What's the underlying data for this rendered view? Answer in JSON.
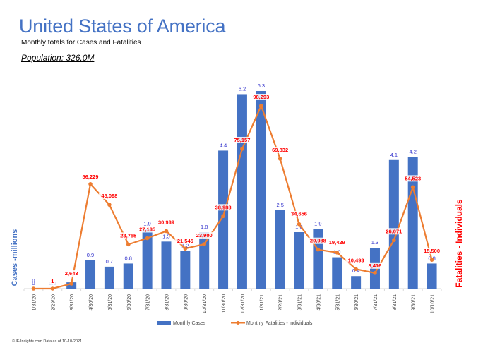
{
  "header": {
    "title": "United States of America",
    "subtitle": "Monthly totals for Cases and Fatalities",
    "population": "Population: 326.0M"
  },
  "footer": "©JF-Insights.com  Data as of 10-10-2021",
  "colors": {
    "cases": "#4472c4",
    "fatalities": "#ed7d31",
    "cases_label": "#3333cc",
    "fatalities_label": "#ff0000"
  },
  "chart_data": {
    "type": "bar",
    "title": "United States of America",
    "subtitle": "Monthly totals for Cases and Fatalities",
    "categories": [
      "1/31/20",
      "2/29/20",
      "3/31/20",
      "4/30/20",
      "5/31/20",
      "6/30/20",
      "7/31/20",
      "8/31/20",
      "9/30/20",
      "10/31/20",
      "11/30/20",
      "12/31/20",
      "1/31/21",
      "2/28/21",
      "3/31/21",
      "4/30/21",
      "5/31/21",
      "6/30/21",
      "7/31/21",
      "8/31/21",
      "9/30/21",
      "10/10/21"
    ],
    "series": [
      {
        "name": "Monthly Cases",
        "type": "bar",
        "axis": "left",
        "values": [
          0,
          0.0,
          0.2,
          0.9,
          0.7,
          0.8,
          1.9,
          1.5,
          1.2,
          1.8,
          4.4,
          6.2,
          6.3,
          2.5,
          1.8,
          1.9,
          1.0,
          0.4,
          1.3,
          4.1,
          4.2,
          0.8
        ],
        "labels": [
          "0",
          "0.0",
          "0.2",
          "0.9",
          "0.7",
          "0.8",
          "1.9",
          "1.5",
          "1.2",
          "1.8",
          "4.4",
          "6.2",
          "6.3",
          "2.5",
          "1.8",
          "1.9",
          "1.0",
          "0.4",
          "1.3",
          "4.1",
          "4.2",
          "0.8"
        ]
      },
      {
        "name": "Monthly Fatalities - individuals",
        "type": "line",
        "axis": "right",
        "values": [
          0,
          1,
          2643,
          56229,
          45098,
          23765,
          27135,
          30939,
          21545,
          23900,
          38988,
          75157,
          98293,
          69832,
          34656,
          20988,
          19429,
          10493,
          8416,
          26071,
          54523,
          15500
        ],
        "labels": [
          "",
          "1",
          "2,643",
          "56,229",
          "45,098",
          "23,765",
          "27,135",
          "30,939",
          "21,545",
          "23,900",
          "38,988",
          "75,157",
          "98,293",
          "69,832",
          "34,656",
          "20,988",
          "19,429",
          "10,493",
          "8,416",
          "26,071",
          "54,523",
          "15,500"
        ]
      }
    ],
    "ylabel": "Cases -millions",
    "y2label": "Fatalities - Individuals",
    "ylim": [
      0,
      6.5
    ],
    "y2lim": [
      0,
      110000
    ],
    "grid": false,
    "legend_position": "bottom"
  }
}
